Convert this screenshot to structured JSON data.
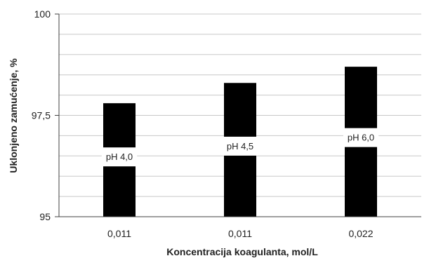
{
  "chart_data": {
    "type": "bar",
    "categories": [
      "0,011",
      "0,011",
      "0,022"
    ],
    "values": [
      97.8,
      98.3,
      98.7
    ],
    "data_labels": [
      "pH 4,0",
      "pH 4,5",
      "pH 6,0"
    ],
    "xlabel": "Koncentracija koagulanta, mol/L",
    "ylabel": "Uklonjeno zamućenje, %",
    "ylim": [
      95,
      100
    ],
    "y_ticks": [
      95,
      97.5,
      100
    ],
    "y_tick_labels": [
      "95",
      "97,5",
      "100"
    ],
    "grid": true,
    "legend": "none",
    "colors": {
      "bar": "#000000",
      "grid": "#c8c8c8",
      "axis": "#404040"
    }
  }
}
